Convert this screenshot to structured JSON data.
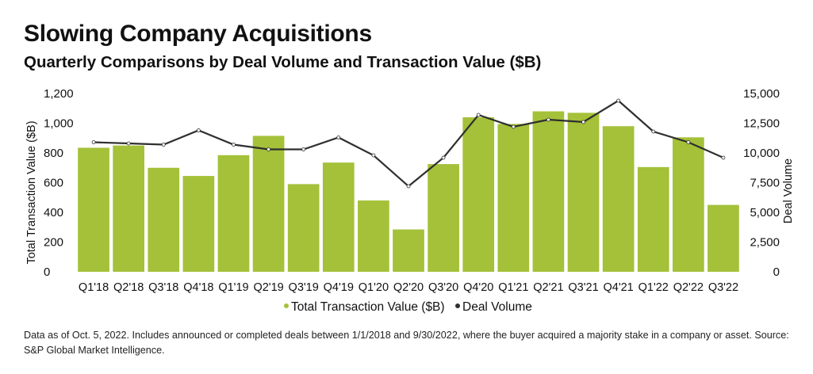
{
  "title": "Slowing Company Acquisitions",
  "subtitle": "Quarterly Comparisons by Deal Volume and Transaction Value ($B)",
  "footnote": "Data as of Oct. 5, 2022. Includes announced or completed deals between 1/1/2018 and 9/30/2022, where the buyer acquired a majority stake in a company or asset. Source: S&P Global Market Intelligence.",
  "colors": {
    "bar": "#a4c139",
    "line": "#2f2f2f",
    "marker": "#ffffff",
    "text": "#111111"
  },
  "chart_data": {
    "type": "bar",
    "categories": [
      "Q1'18",
      "Q2'18",
      "Q3'18",
      "Q4'18",
      "Q1'19",
      "Q2'19",
      "Q3'19",
      "Q4'19",
      "Q1'20",
      "Q2'20",
      "Q3'20",
      "Q4'20",
      "Q1'21",
      "Q2'21",
      "Q3'21",
      "Q4'21",
      "Q1'22",
      "Q2'22",
      "Q3'22"
    ],
    "series": [
      {
        "name": "Total Transaction Value ($B)",
        "type": "bar",
        "axis": "left",
        "values": [
          835,
          850,
          700,
          645,
          785,
          915,
          590,
          735,
          480,
          285,
          725,
          1040,
          995,
          1080,
          1070,
          980,
          705,
          905,
          450
        ]
      },
      {
        "name": "Deal Volume",
        "type": "line",
        "axis": "right",
        "values": [
          10900,
          10800,
          10700,
          11900,
          10700,
          10300,
          10300,
          11300,
          9800,
          7200,
          9600,
          13200,
          12200,
          12800,
          12600,
          14400,
          11800,
          10900,
          9600
        ]
      }
    ],
    "ylabel": "Total Transaction Value ($B)",
    "y2label": "Deal Volume",
    "ylim": [
      0,
      1200
    ],
    "y2lim": [
      0,
      15000
    ],
    "yticks": [
      "1,200",
      "1,000",
      "800",
      "600",
      "400",
      "200",
      "0"
    ],
    "y2ticks": [
      "15,000",
      "12,500",
      "10,000",
      "7,500",
      "5,000",
      "2,500",
      "0"
    ],
    "grid": false,
    "legend_position": "bottom-center"
  }
}
